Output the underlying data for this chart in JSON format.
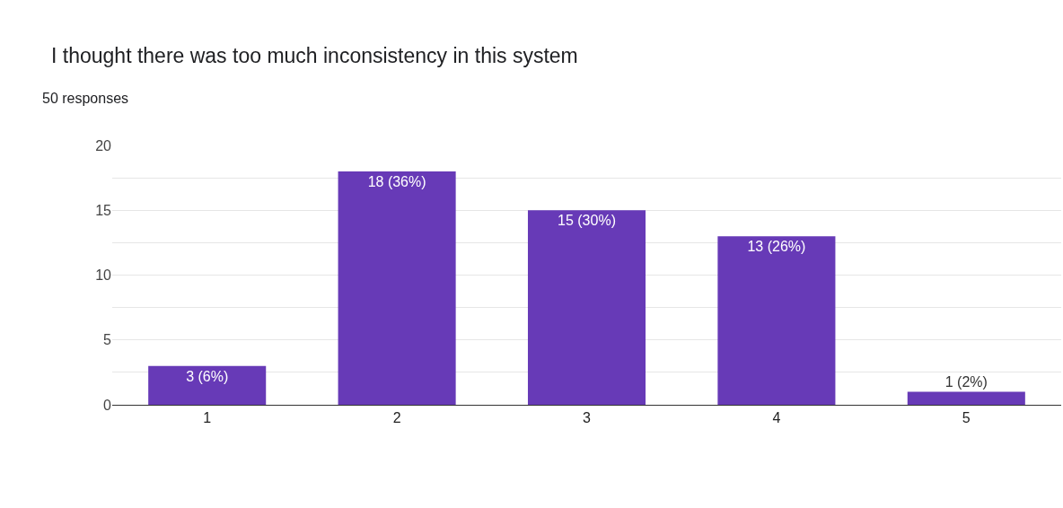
{
  "chart_data": {
    "type": "bar",
    "title": "I thought there was too much inconsistency in this system",
    "subtitle": "50 responses",
    "categories": [
      "1",
      "2",
      "3",
      "4",
      "5"
    ],
    "values": [
      3,
      18,
      15,
      13,
      1
    ],
    "value_labels": [
      "3 (6%)",
      "18 (36%)",
      "15 (30%)",
      "13 (26%)",
      "1 (2%)"
    ],
    "color": "#673ab7",
    "ylim": [
      0,
      20
    ],
    "yticks": [
      0,
      {
        "value": 2.5,
        "label": null
      },
      5,
      {
        "value": 7.5,
        "label": null
      },
      10,
      {
        "value": 12.5,
        "label": null
      },
      15,
      {
        "value": 17.5,
        "label": null
      },
      20
    ],
    "grid": "y"
  }
}
